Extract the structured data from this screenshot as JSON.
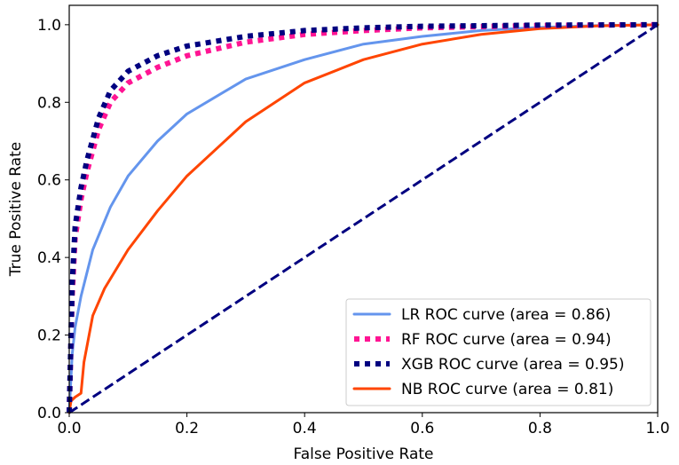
{
  "chart_data": {
    "type": "line",
    "title": "",
    "xlabel": "False Positive Rate",
    "ylabel": "True Positive Rate",
    "xlim": [
      0.0,
      1.0
    ],
    "ylim": [
      0.0,
      1.05
    ],
    "xticks": [
      0.0,
      0.2,
      0.4,
      0.6,
      0.8,
      1.0
    ],
    "yticks": [
      0.0,
      0.2,
      0.4,
      0.6,
      0.8,
      1.0
    ],
    "xtick_labels": [
      "0.0",
      "0.2",
      "0.4",
      "0.6",
      "0.8",
      "1.0"
    ],
    "ytick_labels": [
      "0.0",
      "0.2",
      "0.4",
      "0.6",
      "0.8",
      "1.0"
    ],
    "legend_position": "lower-right",
    "series": [
      {
        "name": "LR ROC curve (area = 0.86)",
        "color": "#6495ed",
        "style": "solid",
        "x": [
          0.0,
          0.005,
          0.01,
          0.02,
          0.04,
          0.07,
          0.1,
          0.15,
          0.2,
          0.3,
          0.4,
          0.5,
          0.6,
          0.7,
          0.8,
          0.9,
          1.0
        ],
        "y": [
          0.0,
          0.15,
          0.22,
          0.3,
          0.42,
          0.53,
          0.61,
          0.7,
          0.77,
          0.86,
          0.91,
          0.95,
          0.97,
          0.985,
          0.993,
          0.998,
          1.0
        ]
      },
      {
        "name": "RF ROC curve (area = 0.94)",
        "color": "#ff1493",
        "style": "dotted",
        "x": [
          0.0,
          0.005,
          0.01,
          0.02,
          0.03,
          0.05,
          0.07,
          0.1,
          0.15,
          0.2,
          0.3,
          0.4,
          0.5,
          0.6,
          0.8,
          1.0
        ],
        "y": [
          0.0,
          0.3,
          0.45,
          0.55,
          0.62,
          0.73,
          0.8,
          0.85,
          0.89,
          0.92,
          0.955,
          0.975,
          0.985,
          0.992,
          0.998,
          1.0
        ]
      },
      {
        "name": "XGB ROC curve (area = 0.95)",
        "color": "#000080",
        "style": "dotted",
        "x": [
          0.0,
          0.005,
          0.01,
          0.02,
          0.03,
          0.05,
          0.07,
          0.1,
          0.15,
          0.2,
          0.3,
          0.4,
          0.5,
          0.6,
          0.8,
          1.0
        ],
        "y": [
          0.0,
          0.33,
          0.48,
          0.58,
          0.65,
          0.76,
          0.83,
          0.88,
          0.92,
          0.945,
          0.97,
          0.985,
          0.992,
          0.996,
          0.999,
          1.0
        ]
      },
      {
        "name": "NB ROC curve (area = 0.81)",
        "color": "#ff4500",
        "style": "solid",
        "x": [
          0.0,
          0.003,
          0.01,
          0.02,
          0.025,
          0.04,
          0.06,
          0.1,
          0.15,
          0.2,
          0.3,
          0.4,
          0.5,
          0.6,
          0.7,
          0.8,
          0.9,
          1.0
        ],
        "y": [
          0.0,
          0.03,
          0.04,
          0.05,
          0.13,
          0.25,
          0.32,
          0.42,
          0.52,
          0.61,
          0.75,
          0.85,
          0.91,
          0.95,
          0.975,
          0.99,
          0.997,
          1.0
        ]
      },
      {
        "name": "chance diagonal",
        "color": "#000080",
        "style": "dashed",
        "x": [
          0.0,
          1.0
        ],
        "y": [
          0.0,
          1.0
        ],
        "in_legend": false
      }
    ]
  }
}
